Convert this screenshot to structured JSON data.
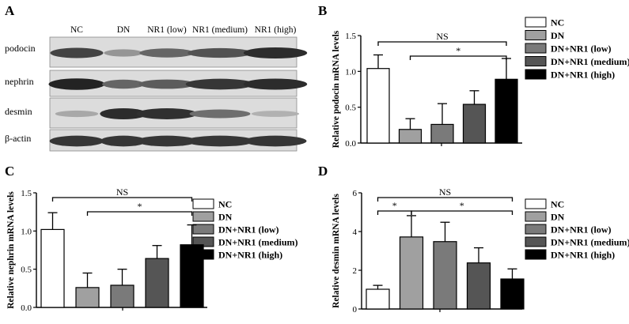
{
  "panels": {
    "A": {
      "letter": "A",
      "lanes": [
        "NC",
        "DN",
        "NR1 (low)",
        "NR1 (medium)",
        "NR1 (high)"
      ],
      "rows": [
        {
          "label": "podocin",
          "intensity": [
            0.78,
            0.35,
            0.6,
            0.7,
            0.9
          ]
        },
        {
          "label": "nephrin",
          "intensity": [
            0.95,
            0.6,
            0.65,
            0.85,
            0.9
          ]
        },
        {
          "label": "desmin",
          "intensity": [
            0.25,
            0.9,
            0.88,
            0.55,
            0.2
          ]
        },
        {
          "label": "β-actin",
          "intensity": [
            0.85,
            0.85,
            0.85,
            0.85,
            0.85
          ]
        }
      ]
    }
  },
  "legend": [
    "NC",
    "DN",
    "DN+NR1 (low)",
    "DN+NR1 (medium)",
    "DN+NR1 (high)"
  ],
  "colors": [
    "#ffffff",
    "#a0a0a0",
    "#7a7a7a",
    "#555555",
    "#000000"
  ],
  "chart_data": [
    {
      "panel": "B",
      "type": "bar",
      "categories": [
        "NC",
        "DN",
        "DN+NR1 (low)",
        "DN+NR1 (medium)",
        "DN+NR1 (high)"
      ],
      "values": [
        1.04,
        0.19,
        0.26,
        0.54,
        0.89
      ],
      "errors": [
        0.19,
        0.15,
        0.29,
        0.19,
        0.29
      ],
      "ylabel": "Relative podocin mRNA levels",
      "ylim": [
        0,
        1.5
      ],
      "yticks": [
        "0.0",
        "0.5",
        "1.0",
        "1.5"
      ],
      "significance": [
        {
          "from": 0,
          "to": 4,
          "label": "NS"
        },
        {
          "from": 1,
          "to": 4,
          "label": "*"
        }
      ]
    },
    {
      "panel": "C",
      "type": "bar",
      "categories": [
        "NC",
        "DN",
        "DN+NR1 (low)",
        "DN+NR1 (medium)",
        "DN+NR1 (high)"
      ],
      "values": [
        1.02,
        0.26,
        0.29,
        0.64,
        0.82
      ],
      "errors": [
        0.22,
        0.19,
        0.21,
        0.17,
        0.26
      ],
      "ylabel": "Relative nephrin mRNA levels",
      "ylim": [
        0,
        1.5
      ],
      "yticks": [
        "0.0",
        "0.5",
        "1.0",
        "1.5"
      ],
      "significance": [
        {
          "from": 0,
          "to": 4,
          "label": "NS"
        },
        {
          "from": 1,
          "to": 4,
          "label": "*"
        }
      ]
    },
    {
      "panel": "D",
      "type": "bar",
      "categories": [
        "NC",
        "DN",
        "DN+NR1 (low)",
        "DN+NR1 (medium)",
        "DN+NR1 (high)"
      ],
      "values": [
        1.02,
        3.72,
        3.48,
        2.38,
        1.55
      ],
      "errors": [
        0.2,
        1.1,
        1.0,
        0.78,
        0.52
      ],
      "ylabel": "Relative desmin mRNA levels",
      "ylim": [
        0,
        6
      ],
      "yticks": [
        "0",
        "2",
        "4",
        "6"
      ],
      "significance": [
        {
          "from": 0,
          "to": 4,
          "label": "NS"
        },
        {
          "from": 0,
          "to": 1,
          "label": "*"
        },
        {
          "from": 1,
          "to": 4,
          "label": "*"
        }
      ]
    }
  ]
}
